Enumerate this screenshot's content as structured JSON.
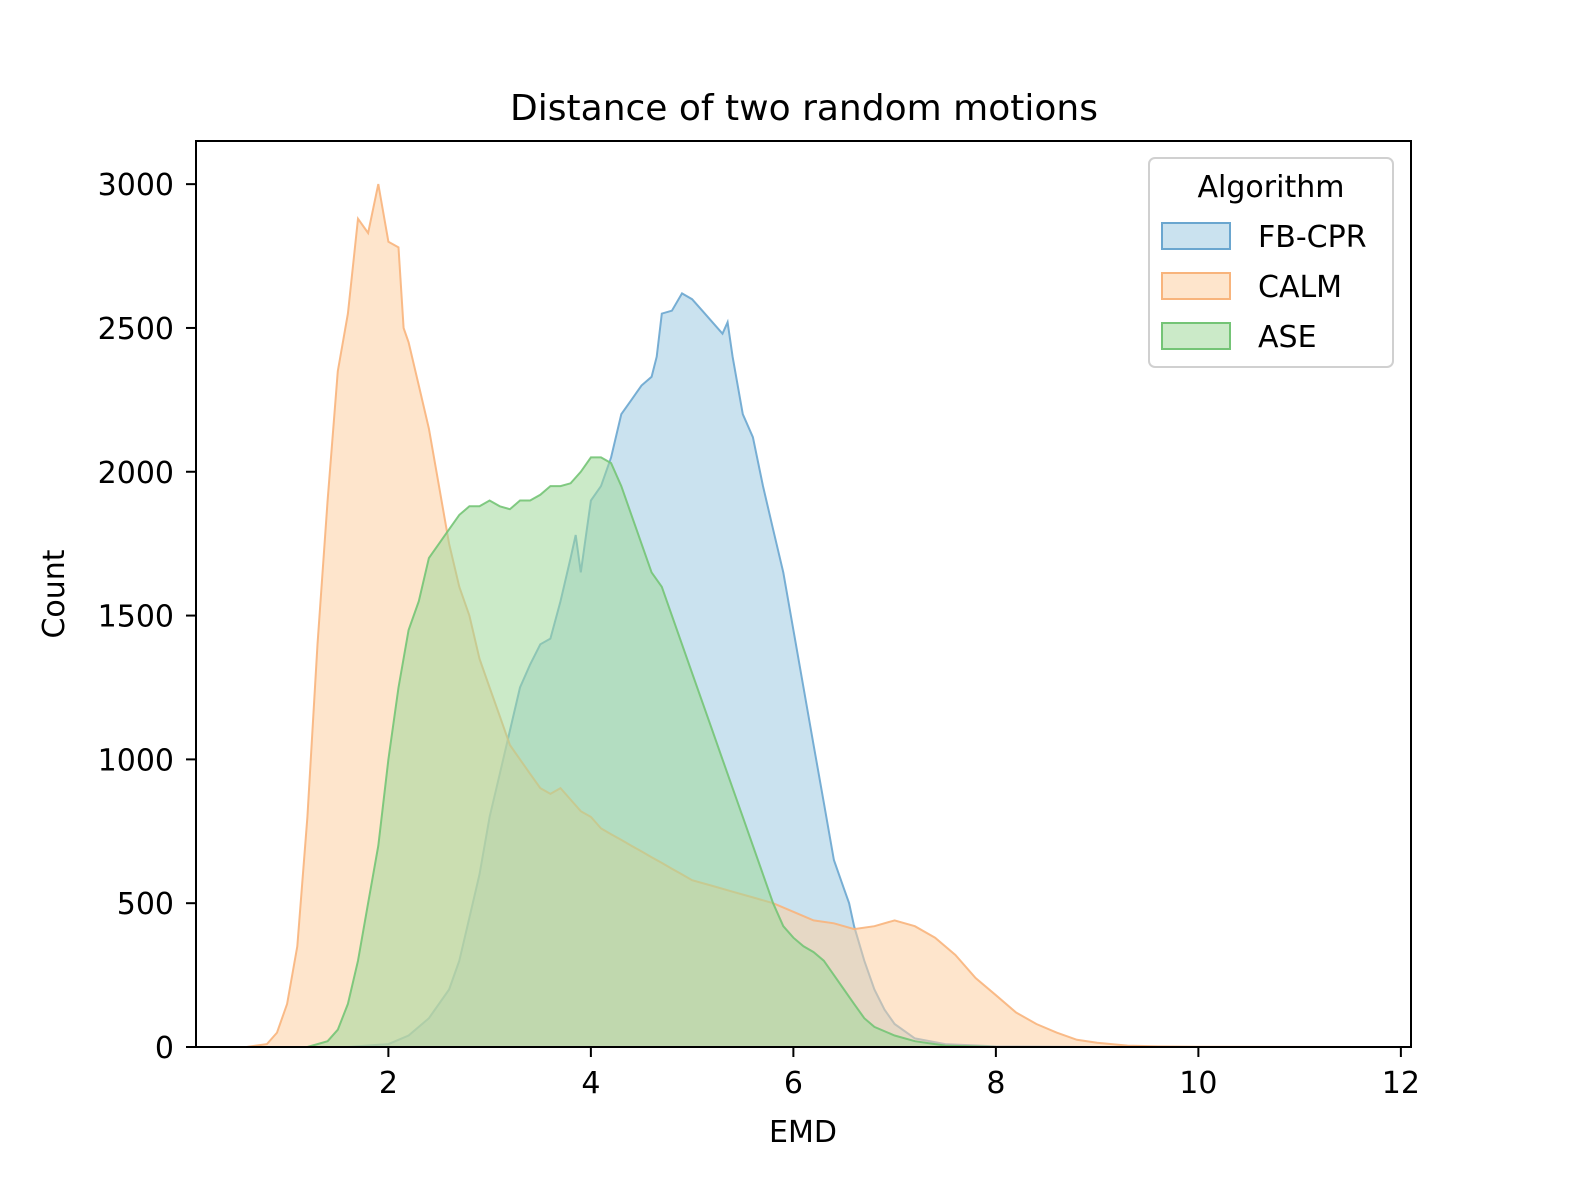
{
  "chart_data": {
    "type": "area",
    "title": "Distance of two random motions",
    "xlabel": "EMD",
    "ylabel": "Count",
    "xlim": [
      0.1,
      12.1
    ],
    "ylim": [
      0,
      3150
    ],
    "x_ticks": [
      2,
      4,
      6,
      8,
      10,
      12
    ],
    "y_ticks": [
      0,
      500,
      1000,
      1500,
      2000,
      2500,
      3000
    ],
    "grid": false,
    "legend": {
      "title": "Algorithm",
      "placement": "top-right"
    },
    "series": [
      {
        "name": "FB-CPR",
        "color": "#9ecae1",
        "stroke": "#6aa6cf",
        "points": [
          [
            1.6,
            0
          ],
          [
            2.0,
            10
          ],
          [
            2.2,
            40
          ],
          [
            2.4,
            100
          ],
          [
            2.6,
            200
          ],
          [
            2.7,
            300
          ],
          [
            2.8,
            450
          ],
          [
            2.9,
            600
          ],
          [
            3.0,
            800
          ],
          [
            3.1,
            950
          ],
          [
            3.2,
            1100
          ],
          [
            3.3,
            1250
          ],
          [
            3.4,
            1330
          ],
          [
            3.5,
            1400
          ],
          [
            3.6,
            1420
          ],
          [
            3.7,
            1550
          ],
          [
            3.8,
            1700
          ],
          [
            3.85,
            1780
          ],
          [
            3.9,
            1650
          ],
          [
            4.0,
            1900
          ],
          [
            4.1,
            1950
          ],
          [
            4.2,
            2050
          ],
          [
            4.3,
            2200
          ],
          [
            4.4,
            2250
          ],
          [
            4.5,
            2300
          ],
          [
            4.6,
            2330
          ],
          [
            4.65,
            2400
          ],
          [
            4.7,
            2550
          ],
          [
            4.8,
            2560
          ],
          [
            4.9,
            2620
          ],
          [
            5.0,
            2600
          ],
          [
            5.1,
            2560
          ],
          [
            5.2,
            2520
          ],
          [
            5.3,
            2480
          ],
          [
            5.35,
            2520
          ],
          [
            5.4,
            2400
          ],
          [
            5.5,
            2200
          ],
          [
            5.6,
            2120
          ],
          [
            5.7,
            1950
          ],
          [
            5.8,
            1800
          ],
          [
            5.9,
            1650
          ],
          [
            6.0,
            1450
          ],
          [
            6.1,
            1250
          ],
          [
            6.2,
            1050
          ],
          [
            6.3,
            850
          ],
          [
            6.4,
            650
          ],
          [
            6.5,
            550
          ],
          [
            6.55,
            500
          ],
          [
            6.6,
            420
          ],
          [
            6.7,
            300
          ],
          [
            6.8,
            200
          ],
          [
            6.9,
            130
          ],
          [
            7.0,
            80
          ],
          [
            7.2,
            30
          ],
          [
            7.5,
            10
          ],
          [
            8.0,
            2
          ],
          [
            9.0,
            0
          ]
        ]
      },
      {
        "name": "CALM",
        "color": "#fdd0a2",
        "stroke": "#f8b47c",
        "points": [
          [
            0.6,
            0
          ],
          [
            0.8,
            10
          ],
          [
            0.9,
            50
          ],
          [
            1.0,
            150
          ],
          [
            1.1,
            350
          ],
          [
            1.2,
            800
          ],
          [
            1.3,
            1400
          ],
          [
            1.4,
            1900
          ],
          [
            1.5,
            2350
          ],
          [
            1.6,
            2550
          ],
          [
            1.7,
            2880
          ],
          [
            1.8,
            2830
          ],
          [
            1.9,
            3000
          ],
          [
            2.0,
            2800
          ],
          [
            2.1,
            2780
          ],
          [
            2.15,
            2500
          ],
          [
            2.2,
            2450
          ],
          [
            2.3,
            2300
          ],
          [
            2.4,
            2150
          ],
          [
            2.5,
            1950
          ],
          [
            2.6,
            1750
          ],
          [
            2.7,
            1600
          ],
          [
            2.8,
            1500
          ],
          [
            2.9,
            1350
          ],
          [
            3.0,
            1250
          ],
          [
            3.1,
            1150
          ],
          [
            3.2,
            1050
          ],
          [
            3.3,
            1000
          ],
          [
            3.4,
            950
          ],
          [
            3.5,
            900
          ],
          [
            3.6,
            880
          ],
          [
            3.7,
            900
          ],
          [
            3.8,
            860
          ],
          [
            3.9,
            820
          ],
          [
            4.0,
            800
          ],
          [
            4.1,
            760
          ],
          [
            4.2,
            740
          ],
          [
            4.3,
            720
          ],
          [
            4.4,
            700
          ],
          [
            4.5,
            680
          ],
          [
            4.6,
            660
          ],
          [
            4.7,
            640
          ],
          [
            4.8,
            620
          ],
          [
            4.9,
            600
          ],
          [
            5.0,
            580
          ],
          [
            5.2,
            560
          ],
          [
            5.4,
            540
          ],
          [
            5.6,
            520
          ],
          [
            5.8,
            500
          ],
          [
            6.0,
            470
          ],
          [
            6.2,
            440
          ],
          [
            6.4,
            430
          ],
          [
            6.6,
            410
          ],
          [
            6.8,
            420
          ],
          [
            7.0,
            440
          ],
          [
            7.2,
            420
          ],
          [
            7.4,
            380
          ],
          [
            7.6,
            320
          ],
          [
            7.8,
            240
          ],
          [
            8.0,
            180
          ],
          [
            8.2,
            120
          ],
          [
            8.4,
            80
          ],
          [
            8.6,
            50
          ],
          [
            8.8,
            25
          ],
          [
            9.0,
            15
          ],
          [
            9.3,
            5
          ],
          [
            9.6,
            2
          ],
          [
            10.0,
            1
          ],
          [
            11.6,
            0
          ]
        ]
      },
      {
        "name": "ASE",
        "color": "#a1d99b",
        "stroke": "#74c476",
        "points": [
          [
            1.2,
            0
          ],
          [
            1.4,
            20
          ],
          [
            1.5,
            60
          ],
          [
            1.6,
            150
          ],
          [
            1.7,
            300
          ],
          [
            1.8,
            500
          ],
          [
            1.9,
            700
          ],
          [
            2.0,
            1000
          ],
          [
            2.1,
            1250
          ],
          [
            2.2,
            1450
          ],
          [
            2.3,
            1550
          ],
          [
            2.4,
            1700
          ],
          [
            2.5,
            1750
          ],
          [
            2.6,
            1800
          ],
          [
            2.7,
            1850
          ],
          [
            2.8,
            1880
          ],
          [
            2.9,
            1880
          ],
          [
            3.0,
            1900
          ],
          [
            3.1,
            1880
          ],
          [
            3.2,
            1870
          ],
          [
            3.3,
            1900
          ],
          [
            3.4,
            1900
          ],
          [
            3.5,
            1920
          ],
          [
            3.6,
            1950
          ],
          [
            3.7,
            1950
          ],
          [
            3.8,
            1960
          ],
          [
            3.9,
            2000
          ],
          [
            4.0,
            2050
          ],
          [
            4.1,
            2050
          ],
          [
            4.2,
            2030
          ],
          [
            4.3,
            1950
          ],
          [
            4.4,
            1850
          ],
          [
            4.5,
            1750
          ],
          [
            4.6,
            1650
          ],
          [
            4.7,
            1600
          ],
          [
            4.8,
            1500
          ],
          [
            4.9,
            1400
          ],
          [
            5.0,
            1300
          ],
          [
            5.1,
            1200
          ],
          [
            5.2,
            1100
          ],
          [
            5.3,
            1000
          ],
          [
            5.4,
            900
          ],
          [
            5.5,
            800
          ],
          [
            5.6,
            700
          ],
          [
            5.7,
            600
          ],
          [
            5.8,
            500
          ],
          [
            5.9,
            420
          ],
          [
            6.0,
            380
          ],
          [
            6.1,
            350
          ],
          [
            6.2,
            330
          ],
          [
            6.3,
            300
          ],
          [
            6.4,
            250
          ],
          [
            6.5,
            200
          ],
          [
            6.6,
            150
          ],
          [
            6.7,
            100
          ],
          [
            6.8,
            70
          ],
          [
            7.0,
            40
          ],
          [
            7.2,
            20
          ],
          [
            7.5,
            5
          ],
          [
            8.0,
            0
          ]
        ]
      }
    ]
  }
}
